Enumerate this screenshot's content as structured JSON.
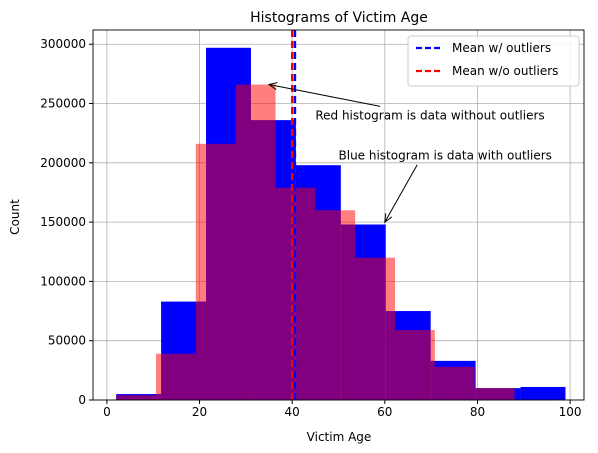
{
  "chart_data": {
    "type": "bar",
    "title": "Histograms of Victim Age",
    "xlabel": "Victim Age",
    "ylabel": "Count",
    "xlim": [
      -3,
      103
    ],
    "ylim": [
      0,
      312000
    ],
    "xticks": [
      0,
      20,
      40,
      60,
      80,
      100
    ],
    "yticks": [
      0,
      50000,
      100000,
      150000,
      200000,
      250000,
      300000
    ],
    "grid": true,
    "series": [
      {
        "name": "data with outliers",
        "color": "#0000ff",
        "opacity": 1.0,
        "bin_edges": [
          2,
          11.7,
          21.4,
          31.1,
          40.8,
          50.5,
          60.2,
          69.9,
          79.6,
          89.3,
          99
        ],
        "counts": [
          5000,
          83000,
          297000,
          236000,
          198000,
          148000,
          75000,
          33000,
          10000,
          11000
        ]
      },
      {
        "name": "data without outliers",
        "color": "#ff0000",
        "opacity": 0.5,
        "bin_edges": [
          2,
          10.6,
          19.2,
          27.8,
          36.4,
          45,
          53.6,
          62.2,
          70.8,
          79.4,
          88
        ],
        "counts": [
          4000,
          39000,
          216000,
          266000,
          179000,
          160000,
          120000,
          59000,
          28000,
          10000
        ]
      }
    ],
    "vlines": [
      {
        "name": "Mean w/ outliers",
        "x": 40.6,
        "color": "#0000ff"
      },
      {
        "name": "Mean w/o outliers",
        "x": 40.0,
        "color": "#ff0000"
      }
    ],
    "legend": {
      "position": "top-right",
      "entries": [
        {
          "label": "Mean w/ outliers",
          "color": "#0000ff"
        },
        {
          "label": "Mean w/o outliers",
          "color": "#ff0000"
        }
      ]
    },
    "annotations": [
      {
        "text": "Red histogram is data without outliers",
        "text_x": 45,
        "text_y": 240000,
        "arrow_x": 35,
        "arrow_y": 266000
      },
      {
        "text": "Blue histogram is data with outliers",
        "text_x": 50,
        "text_y": 206000,
        "arrow_x": 60,
        "arrow_y": 150000
      }
    ]
  }
}
